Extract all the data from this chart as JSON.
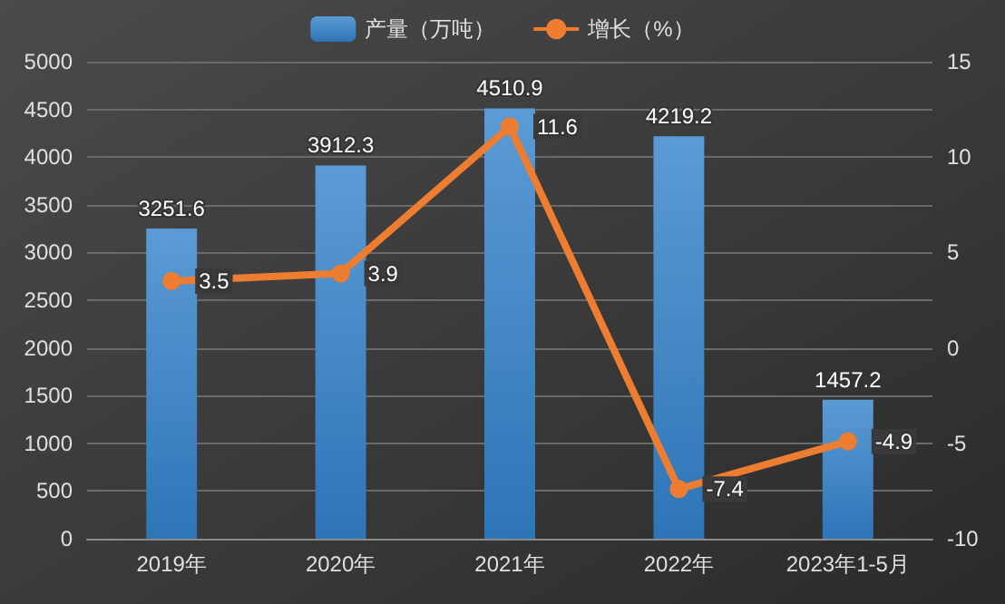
{
  "chart_data": {
    "type": "bar",
    "categories": [
      "2019年",
      "2020年",
      "2021年",
      "2022年",
      "2023年1-5月"
    ],
    "series": [
      {
        "name": "产量（万吨）",
        "color": "#5b9bd5",
        "values": [
          3251.6,
          3912.3,
          4510.9,
          4219.2,
          1457.2
        ]
      },
      {
        "name": "增长（%）",
        "type": "line",
        "axis": "y2",
        "color": "#ed7d31",
        "values": [
          3.5,
          3.9,
          11.6,
          -7.4,
          -4.9
        ]
      }
    ],
    "ylim": [
      0,
      5000
    ],
    "yticks": [
      0,
      500,
      1000,
      1500,
      2000,
      2500,
      3000,
      3500,
      4000,
      4500,
      5000
    ],
    "y2lim": [
      -10,
      15
    ],
    "y2ticks": [
      -10,
      -5,
      0,
      5,
      10,
      15
    ],
    "grid": "y",
    "legend": "top",
    "marker": "circle",
    "line_style": "solid",
    "data_labels": true
  }
}
